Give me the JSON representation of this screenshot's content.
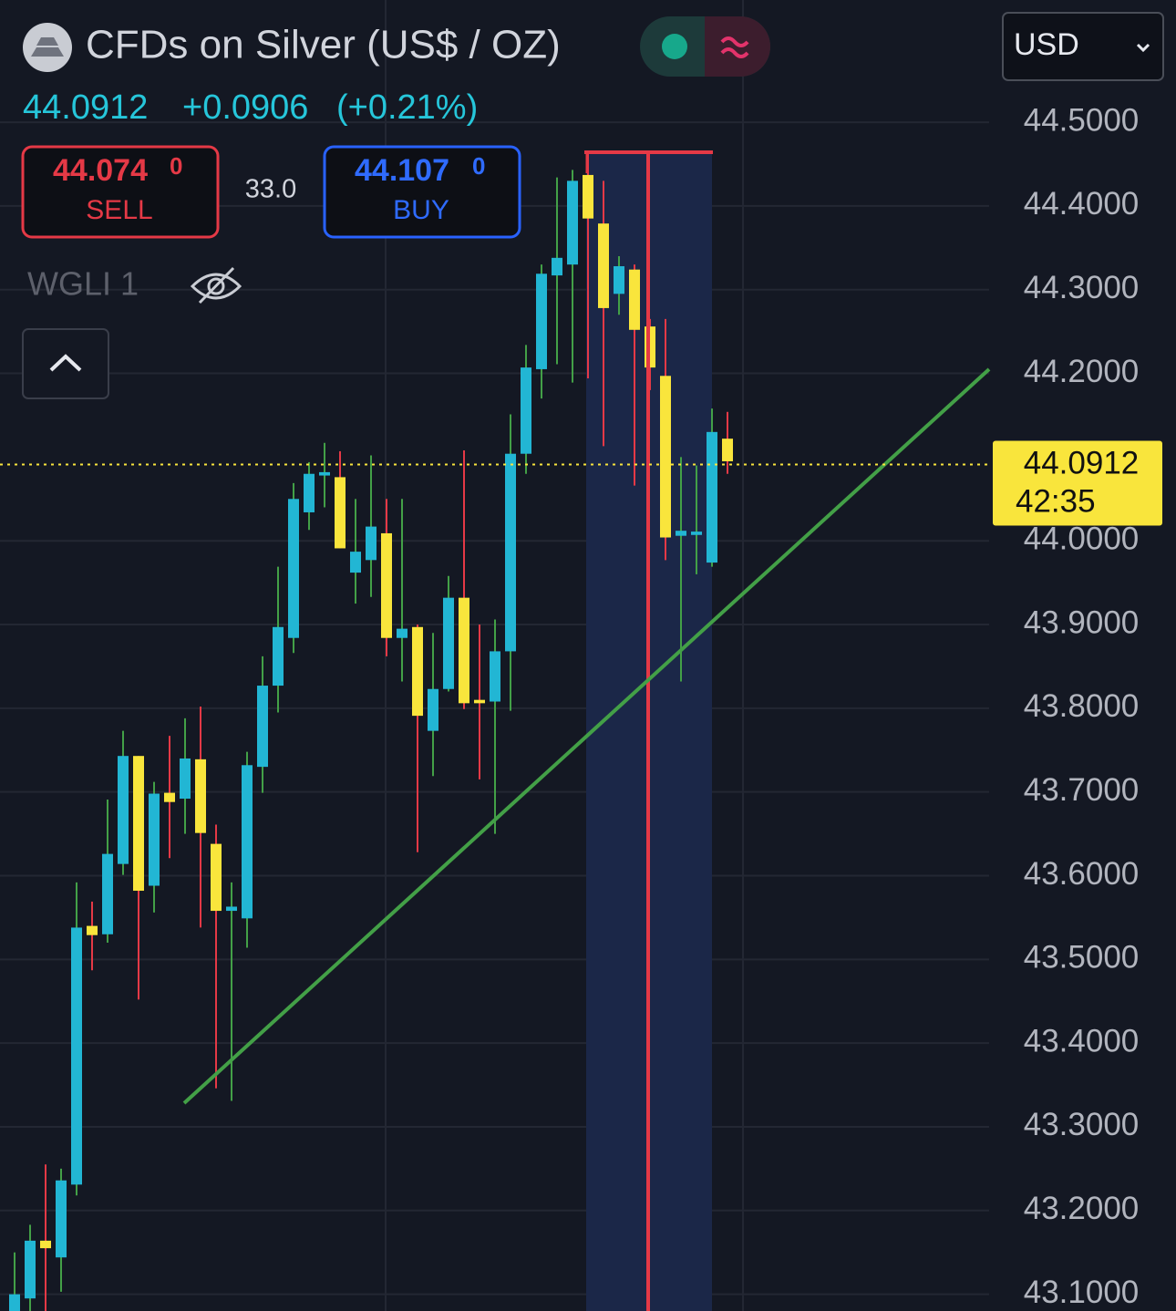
{
  "header": {
    "title": "CFDs on Silver (US$ / OZ)",
    "change": "+0.0906",
    "change_pct": "(+0.21%)",
    "sell": {
      "price": "44.074",
      "pip": "0",
      "label": "SELL"
    },
    "spread": "33.0",
    "buy": {
      "price": "44.107",
      "pip": "0",
      "label": "BUY"
    },
    "indicator": "WGLI 1",
    "currency": "USD"
  },
  "chart_data": {
    "type": "candlestick",
    "last_price": 44.0912,
    "countdown": "42:35",
    "up_color": "#22b6d4",
    "down_color": "#f9e53c",
    "up_wick_color": "#43a047",
    "down_wick_color": "#e53946",
    "ylim": [
      43.08,
      44.646
    ],
    "yticks": [
      {
        "value": 44.5,
        "label": "44.5000"
      },
      {
        "value": 44.4,
        "label": "44.4000"
      },
      {
        "value": 44.3,
        "label": "44.3000"
      },
      {
        "value": 44.2,
        "label": "44.2000"
      },
      {
        "value": 44.0,
        "label": "44.0000"
      },
      {
        "value": 43.9,
        "label": "43.9000"
      },
      {
        "value": 43.8,
        "label": "43.8000"
      },
      {
        "value": 43.7,
        "label": "43.7000"
      },
      {
        "value": 43.6,
        "label": "43.6000"
      },
      {
        "value": 43.5,
        "label": "43.5000"
      },
      {
        "value": 43.4,
        "label": "43.4000"
      },
      {
        "value": 43.3,
        "label": "43.3000"
      },
      {
        "value": 43.2,
        "label": "43.2000"
      },
      {
        "value": 43.1,
        "label": "43.1000"
      }
    ],
    "grid": true,
    "open": [
      43.08,
      43.095,
      43.164,
      43.144,
      43.231,
      43.54,
      43.53,
      43.614,
      43.743,
      43.588,
      43.699,
      43.692,
      43.739,
      43.638,
      43.558,
      43.549,
      43.73,
      43.827,
      43.884,
      44.034,
      44.078,
      44.076,
      43.962,
      43.977,
      44.009,
      43.884,
      43.897,
      43.773,
      43.823,
      43.932,
      43.81,
      43.808,
      43.868,
      44.104,
      44.205,
      44.317,
      44.33,
      44.437,
      44.379,
      44.295,
      44.324,
      44.256,
      44.197,
      44.006,
      44.007,
      43.974,
      44.122
    ],
    "high": [
      43.15,
      43.183,
      43.255,
      43.25,
      43.592,
      43.569,
      43.691,
      43.773,
      43.743,
      43.712,
      43.767,
      43.788,
      43.802,
      43.661,
      43.592,
      43.748,
      43.862,
      43.969,
      44.069,
      44.094,
      44.117,
      44.107,
      44.05,
      44.102,
      44.05,
      44.05,
      43.9,
      43.89,
      43.958,
      44.108,
      43.9,
      43.906,
      44.151,
      44.234,
      44.33,
      44.434,
      44.443,
      44.463,
      44.43,
      44.34,
      44.33,
      44.265,
      44.265,
      44.1,
      44.09,
      44.158,
      44.154
    ],
    "low": [
      43.05,
      43.08,
      43.08,
      43.103,
      43.218,
      43.487,
      43.52,
      43.601,
      43.452,
      43.556,
      43.621,
      43.65,
      43.538,
      43.346,
      43.331,
      43.514,
      43.699,
      43.795,
      43.866,
      44.013,
      44.04,
      43.991,
      43.925,
      43.933,
      43.862,
      43.832,
      43.628,
      43.719,
      43.82,
      43.799,
      43.715,
      43.65,
      43.797,
      44.08,
      44.17,
      44.211,
      44.189,
      44.194,
      44.113,
      44.27,
      44.066,
      44.18,
      43.977,
      43.832,
      43.96,
      43.969,
      44.08
    ],
    "close": [
      43.1,
      43.164,
      43.155,
      43.236,
      43.538,
      43.529,
      43.626,
      43.743,
      43.582,
      43.698,
      43.688,
      43.74,
      43.651,
      43.558,
      43.563,
      43.732,
      43.827,
      43.897,
      44.05,
      44.08,
      44.082,
      43.991,
      43.987,
      44.017,
      43.884,
      43.895,
      43.791,
      43.823,
      43.932,
      43.806,
      43.806,
      43.868,
      44.104,
      44.207,
      44.319,
      44.338,
      44.43,
      44.385,
      44.278,
      44.328,
      44.252,
      44.207,
      44.004,
      44.012,
      44.011,
      44.13,
      44.095
    ]
  }
}
